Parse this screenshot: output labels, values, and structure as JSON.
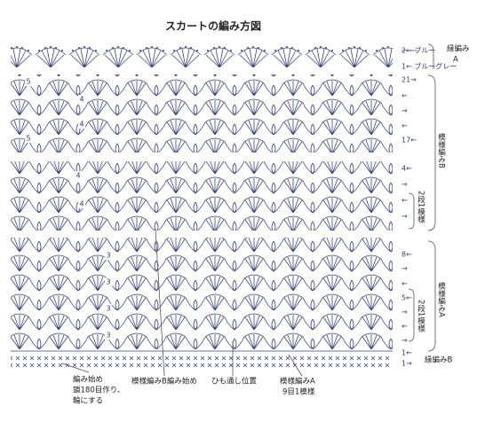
{
  "title": "スカートの編み方図",
  "row_markers": [
    "2← ブルー",
    "1← ブルーグレー",
    "21→",
    "←",
    "→",
    "←",
    "17←",
    "4←",
    "→",
    "←",
    "→",
    "8←",
    "→",
    "←",
    "5←",
    "→",
    "←",
    "→",
    "1←",
    "1→"
  ],
  "sections": [
    {
      "label": "縁編み",
      "sub": "A"
    },
    {
      "label": "模様編みB"
    },
    {
      "label": "2段1模様"
    },
    {
      "label": "模様編みA"
    },
    {
      "label": "2段1模様"
    },
    {
      "label": "縁編みB"
    }
  ],
  "stitch_numbers": [
    "5",
    "4",
    "4",
    "5",
    "4",
    "4",
    "3",
    "3",
    "3",
    "3"
  ],
  "notes": {
    "start": [
      "編み始め",
      "鎖180目作り、",
      "輪にする"
    ],
    "pattern_b_start": "模様編みB編み始め",
    "cord_position": "ひも通し位置",
    "pattern_a": [
      "模様編みA",
      "9目1模様"
    ]
  }
}
